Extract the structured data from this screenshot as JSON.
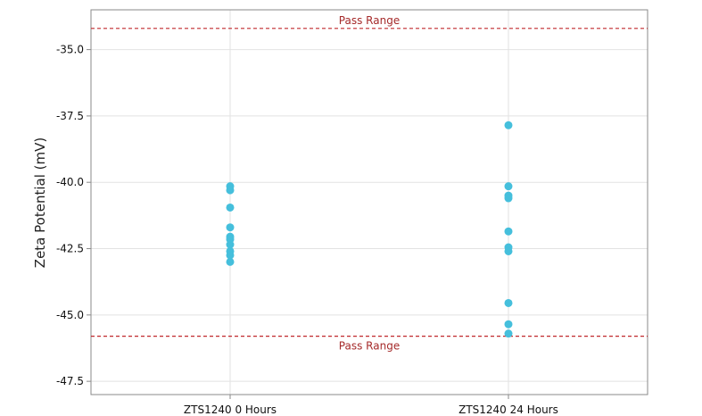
{
  "chart_data": {
    "type": "scatter",
    "title": "",
    "xlabel": "",
    "ylabel": "Zeta Potential (mV)",
    "categories": [
      "ZTS1240 0 Hours",
      "ZTS1240 24 Hours"
    ],
    "ylim": [
      -48.0,
      -33.5
    ],
    "yticks": [
      -35.0,
      -37.5,
      -40.0,
      -42.5,
      -45.0,
      -47.5
    ],
    "ytick_labels": [
      "-35.0",
      "-37.5",
      "-40.0",
      "-42.5",
      "-45.0",
      "-47.5"
    ],
    "grid": true,
    "series": [
      {
        "values": [
          [
            -40.15,
            -40.3,
            -40.95,
            -41.7,
            -42.05,
            -42.15,
            -42.35,
            -42.6,
            -42.75,
            -43.0
          ],
          [
            -37.85,
            -40.15,
            -40.5,
            -40.6,
            -41.85,
            -42.45,
            -42.6,
            -44.55,
            -45.35,
            -45.7
          ]
        ]
      }
    ],
    "reference_lines": [
      {
        "label": "Pass Range",
        "y": -34.2,
        "label_position": "above"
      },
      {
        "label": "Pass Range",
        "y": -45.8,
        "label_position": "below"
      }
    ],
    "colors": {
      "points": "#45bfdc",
      "reference": "#c0282d",
      "reference_label": "#a52a2a",
      "grid": "#e2e2e2",
      "frame": "#8a8a8a"
    }
  }
}
